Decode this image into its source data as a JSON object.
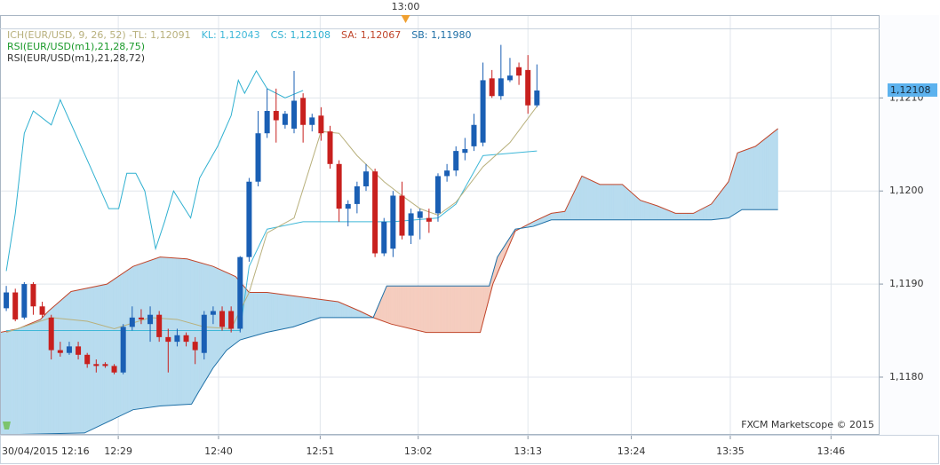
{
  "chart_data": {
    "type": "candlestick",
    "x": [
      0,
      1,
      2,
      3,
      4,
      5,
      6,
      7,
      8,
      9,
      10,
      11,
      12,
      13,
      14,
      15,
      16,
      17,
      18,
      19,
      20,
      21,
      22,
      23,
      24,
      25,
      26,
      27,
      28,
      29,
      30,
      31,
      32,
      33,
      34,
      35,
      36,
      37,
      38,
      39,
      40,
      41,
      42,
      43,
      44,
      45,
      46,
      47,
      48,
      49,
      50,
      51,
      52,
      53,
      54,
      55,
      56,
      57,
      58,
      59
    ],
    "open": [
      1.11874,
      1.11891,
      1.11864,
      1.119,
      1.11876,
      1.11864,
      1.11829,
      1.11826,
      1.11833,
      1.11824,
      1.11814,
      1.11814,
      1.11812,
      1.11805,
      1.11854,
      1.11864,
      1.11857,
      1.11867,
      1.11843,
      1.11838,
      1.11845,
      1.11838,
      1.11826,
      1.11867,
      1.11871,
      1.11871,
      1.11852,
      1.11929,
      1.1201,
      1.12062,
      1.12086,
      1.12071,
      1.12067,
      1.121,
      1.12071,
      1.12081,
      1.12064,
      1.12029,
      1.11981,
      1.11986,
      1.12005,
      1.12021,
      1.11933,
      1.11938,
      1.11995,
      1.11952,
      1.11971,
      1.11971,
      1.11976,
      1.12016,
      1.12022,
      1.12041,
      1.12048,
      1.12052,
      1.12121,
      1.12102,
      1.12119,
      1.12133,
      1.1213,
      1.12092
    ],
    "high": [
      1.11898,
      1.11895,
      1.11902,
      1.11902,
      1.11881,
      1.11867,
      1.11838,
      1.11838,
      1.11838,
      1.11826,
      1.11819,
      1.11816,
      1.11814,
      1.11857,
      1.11876,
      1.11873,
      1.11876,
      1.11871,
      1.11852,
      1.11852,
      1.11848,
      1.11843,
      1.11871,
      1.11876,
      1.11876,
      1.11876,
      1.1193,
      1.12014,
      1.12086,
      1.1211,
      1.1211,
      1.12086,
      1.12129,
      1.12105,
      1.12083,
      1.1209,
      1.1207,
      1.12033,
      1.1199,
      1.1201,
      1.12029,
      1.12024,
      1.11971,
      1.12,
      1.1201,
      1.11981,
      1.11981,
      1.11981,
      1.12019,
      1.12029,
      1.12048,
      1.12057,
      1.12083,
      1.12138,
      1.1213,
      1.12157,
      1.12143,
      1.12138,
      1.12146,
      1.12136
    ],
    "low": [
      1.11871,
      1.1186,
      1.11862,
      1.11867,
      1.11864,
      1.11819,
      1.11822,
      1.11824,
      1.11819,
      1.1181,
      1.11805,
      1.1181,
      1.11803,
      1.11803,
      1.1185,
      1.11857,
      1.11838,
      1.11838,
      1.11805,
      1.11833,
      1.11833,
      1.11814,
      1.11819,
      1.11857,
      1.1185,
      1.11848,
      1.11848,
      1.11924,
      1.12005,
      1.12057,
      1.12052,
      1.12067,
      1.12062,
      1.12052,
      1.12064,
      1.12054,
      1.12024,
      1.11967,
      1.11962,
      1.11976,
      1.12,
      1.11929,
      1.1193,
      1.11929,
      1.11948,
      1.11943,
      1.11948,
      1.11955,
      1.11967,
      1.1201,
      1.12016,
      1.12033,
      1.12043,
      1.12048,
      1.121,
      1.12098,
      1.12117,
      1.12114,
      1.12083,
      1.1209
    ],
    "close": [
      1.11891,
      1.11862,
      1.119,
      1.11876,
      1.11867,
      1.11829,
      1.11826,
      1.11833,
      1.11824,
      1.11814,
      1.11812,
      1.11812,
      1.11805,
      1.11854,
      1.11864,
      1.11862,
      1.11867,
      1.11843,
      1.11838,
      1.11845,
      1.11838,
      1.11829,
      1.11867,
      1.11871,
      1.11854,
      1.11852,
      1.11929,
      1.1201,
      1.12062,
      1.12086,
      1.12076,
      1.12083,
      1.12097,
      1.12071,
      1.12079,
      1.12062,
      1.12029,
      1.11981,
      1.11986,
      1.12005,
      1.12021,
      1.11933,
      1.11967,
      1.11995,
      1.11952,
      1.11976,
      1.11978,
      1.11967,
      1.12016,
      1.12022,
      1.12043,
      1.12045,
      1.12071,
      1.12119,
      1.12102,
      1.12121,
      1.12124,
      1.12124,
      1.12092,
      1.12108
    ],
    "up_color": "#1a5fb4",
    "down_color": "#c8201e",
    "xlim": [
      -0.7,
      97.1
    ],
    "xticks": [
      {
        "value": -0.7,
        "label": "30/04/2015 12:16"
      },
      {
        "value": 12.45,
        "label": "12:29"
      },
      {
        "value": 23.6,
        "label": "12:40"
      },
      {
        "value": 34.9,
        "label": "12:51"
      },
      {
        "value": 45.8,
        "label": "13:02"
      },
      {
        "value": 58.0,
        "label": "13:13"
      },
      {
        "value": 69.5,
        "label": "13:24"
      },
      {
        "value": 80.5,
        "label": "13:35"
      },
      {
        "value": 91.7,
        "label": "13:46"
      }
    ],
    "ylim": [
      1.11738,
      1.12189
    ],
    "yticks": [
      {
        "value": 1.118,
        "label": "1,1180"
      },
      {
        "value": 1.119,
        "label": "1,1190"
      },
      {
        "value": 1.12,
        "label": "1,1200"
      },
      {
        "value": 1.121,
        "label": "1,1210"
      }
    ],
    "grid": true,
    "indicator_title": "ICH(EUR/USD, 9, 26, 52) - ",
    "indicator_color": "#b8b07c",
    "series": [
      {
        "name": "TL: 1,12091",
        "color": "#b8b07c",
        "x": [
          0,
          5,
          9,
          12,
          16,
          19,
          22,
          25,
          27,
          29,
          32,
          35,
          37,
          39,
          42,
          44,
          46,
          48,
          50,
          53,
          56,
          59
        ],
        "values": [
          1.11848,
          1.11864,
          1.1186,
          1.11852,
          1.11864,
          1.11862,
          1.11854,
          1.11852,
          1.11891,
          1.11955,
          1.11971,
          1.12064,
          1.12062,
          1.12038,
          1.1201,
          1.11995,
          1.11981,
          1.11974,
          1.11988,
          1.12026,
          1.12052,
          1.12091
        ]
      },
      {
        "name": "KL: 1,12043",
        "color": "#3fb8d8",
        "x": [
          0,
          26,
          27,
          29,
          33,
          43,
          48,
          50,
          53,
          59
        ],
        "values": [
          1.1185,
          1.1185,
          1.11919,
          1.11959,
          1.11967,
          1.11967,
          1.11971,
          1.11986,
          1.12038,
          1.12043
        ]
      },
      {
        "name": "CS: 1,12108",
        "color": "#2fb0d0",
        "x": [
          0,
          1,
          2,
          3,
          5,
          6,
          9.2,
          11.4,
          12.5,
          13.4,
          14.4,
          15.4,
          16.6,
          17.6,
          18.6,
          20.5,
          21.5,
          23.5,
          25,
          25.8,
          26.5,
          27.8,
          29,
          31,
          33
        ],
        "values": [
          1.11914,
          1.11976,
          1.12062,
          1.12086,
          1.12071,
          1.12098,
          1.12029,
          1.11981,
          1.11981,
          1.12019,
          1.12019,
          1.12,
          1.11938,
          1.11967,
          1.12,
          1.11971,
          1.12014,
          1.12048,
          1.12081,
          1.12119,
          1.12105,
          1.12129,
          1.1211,
          1.121,
          1.12108
        ]
      },
      {
        "name": "SA: 1,12067",
        "color": "#c0452a",
        "x": [
          -0.7,
          1.3,
          3.8,
          4.7,
          7.2,
          11.2,
          14.1,
          17.1,
          20.1,
          23,
          25.5,
          27,
          29,
          32.9,
          36.9,
          39.3,
          40.8,
          42.8,
          46.7,
          52.7,
          54.1,
          56.6,
          58.6,
          60.6,
          62.1,
          64,
          66,
          68.5,
          70.5,
          72.4,
          74.4,
          76.4,
          78.4,
          80.3,
          81.3,
          83.3,
          85.8
        ],
        "values": [
          1.11848,
          1.11852,
          1.11862,
          1.11871,
          1.11892,
          1.119,
          1.11919,
          1.11929,
          1.11927,
          1.11919,
          1.11908,
          1.11891,
          1.11891,
          1.11886,
          1.11881,
          1.11871,
          1.11864,
          1.11857,
          1.11848,
          1.11848,
          1.119,
          1.11957,
          1.11967,
          1.11976,
          1.11978,
          1.12016,
          1.12007,
          1.12007,
          1.1199,
          1.11984,
          1.11976,
          1.11976,
          1.11986,
          1.1201,
          1.12041,
          1.12048,
          1.12067
        ]
      },
      {
        "name": "SB: 1,11980",
        "color": "#1e6fa6",
        "x": [
          -0.7,
          8.7,
          14.1,
          17.1,
          20.6,
          21.5,
          23,
          24.5,
          26,
          28.9,
          31.9,
          34.9,
          40.8,
          42.3,
          53.7,
          54.6,
          56.6,
          58.6,
          60.6,
          78.4,
          80.3,
          81.8,
          85.8
        ],
        "values": [
          1.11738,
          1.1174,
          1.11765,
          1.11769,
          1.11771,
          1.11786,
          1.1181,
          1.11829,
          1.1184,
          1.11848,
          1.11854,
          1.11864,
          1.11864,
          1.11898,
          1.11898,
          1.11929,
          1.11959,
          1.11962,
          1.11969,
          1.11969,
          1.11971,
          1.1198,
          1.1198
        ]
      }
    ],
    "cloud_colors": {
      "up": "#b8dcef",
      "down": "#f5cdbf"
    },
    "extra_labels": [
      {
        "text": "RSI(EUR/USD(m1),21,28,75)",
        "color": "#1a9a2a"
      },
      {
        "text": "RSI(EUR/USD(m1),21,28,72)",
        "color": "#333333"
      }
    ],
    "last_price": {
      "value": 1.12108,
      "label": "1,12108",
      "color": "#5cb2ee"
    },
    "cursor": {
      "x": 44.4,
      "label": "13:00",
      "color": "#f0a030"
    },
    "watermark": "FXCM Marketscope © 2015"
  }
}
